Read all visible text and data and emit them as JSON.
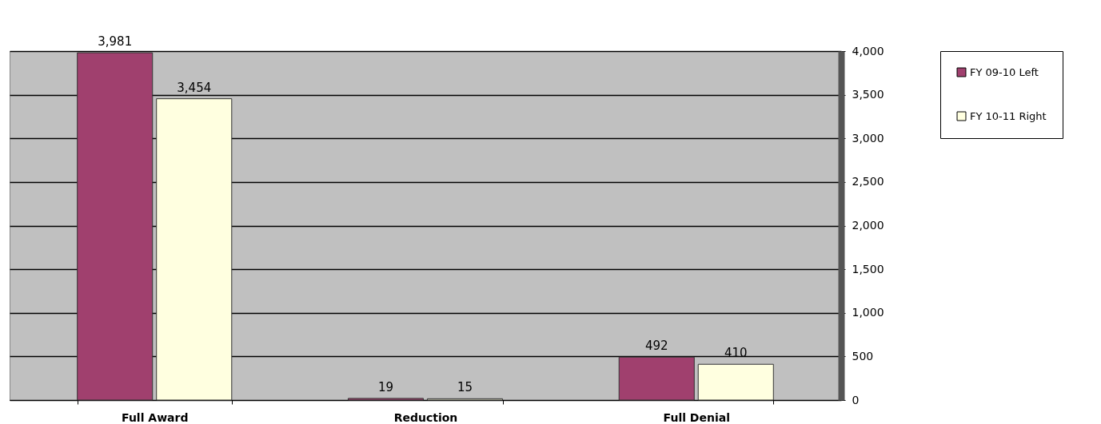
{
  "chart_data": {
    "type": "bar",
    "categories": [
      "Full Award",
      "Reduction",
      "Full Denial"
    ],
    "series": [
      {
        "name": "FY 09-10 Left",
        "color": "#a0406e",
        "values": [
          3981,
          19,
          492
        ],
        "value_labels": [
          "3,981",
          "19",
          "492"
        ]
      },
      {
        "name": "FY 10-11 Right",
        "color": "#ffffe0",
        "values": [
          3454,
          15,
          410
        ],
        "value_labels": [
          "3,454",
          "15",
          "410"
        ]
      }
    ],
    "ylim": [
      0,
      4000
    ],
    "yticks": [
      0,
      500,
      {
        "value": 1000,
        "label": "1,000"
      },
      {
        "value": 1500,
        "label": "1,500"
      },
      {
        "value": 2000,
        "label": "2,000"
      },
      {
        "value": 2500,
        "label": "2,500"
      },
      {
        "value": 3000,
        "label": "3,000"
      },
      {
        "value": 3500,
        "label": "3,500"
      },
      {
        "value": 4000,
        "label": "4,000"
      }
    ],
    "grid": "y",
    "legend": "right"
  }
}
